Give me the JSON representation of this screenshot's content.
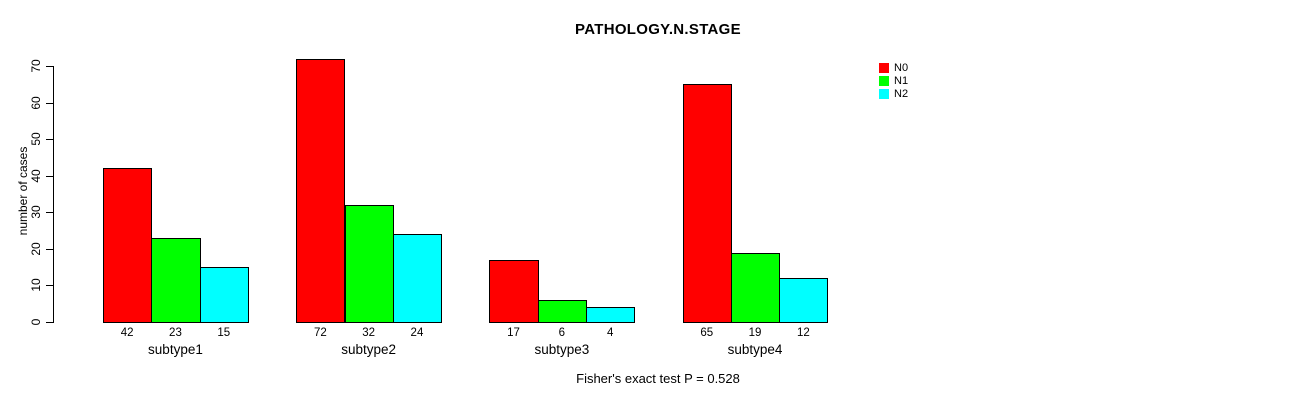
{
  "chart_data": {
    "type": "bar",
    "title": "PATHOLOGY.N.STAGE",
    "ylabel": "number of cases",
    "xlabel": "",
    "annotation": "Fisher's exact test P = 0.528",
    "categories": [
      "subtype1",
      "subtype2",
      "subtype3",
      "subtype4"
    ],
    "series": [
      {
        "name": "N0",
        "color": "#FF0000",
        "values": [
          42,
          72,
          17,
          65
        ]
      },
      {
        "name": "N1",
        "color": "#00FF00",
        "values": [
          23,
          32,
          6,
          19
        ]
      },
      {
        "name": "N2",
        "color": "#00FFFF",
        "values": [
          15,
          24,
          4,
          12
        ]
      }
    ],
    "ylim": [
      0,
      70
    ],
    "yticks": [
      0,
      10,
      20,
      30,
      40,
      50,
      60,
      70
    ],
    "bar_value_labels_shown": true,
    "grid": false,
    "legend_position": "top-right",
    "background_color": "#FFFFFF",
    "bar_border_color": "#000000"
  }
}
